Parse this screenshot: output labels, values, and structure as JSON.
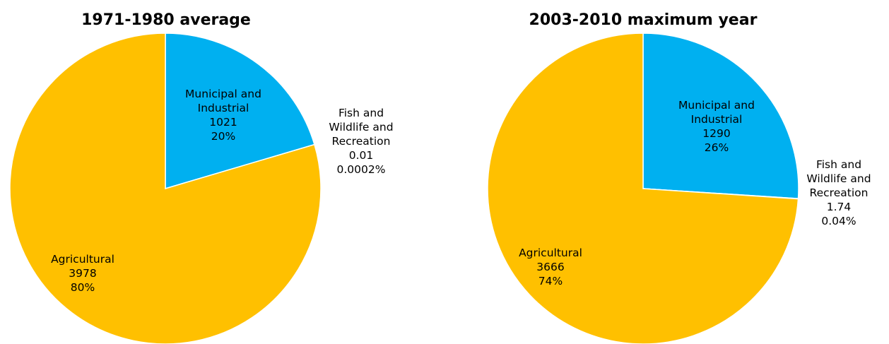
{
  "colors": {
    "municipal": "#00B0F0",
    "agricultural": "#FFC000",
    "fish": "#FFFFFF"
  },
  "chart_data": [
    {
      "type": "pie",
      "title": "1971-1980 average",
      "slices": [
        {
          "name": "Municipal and Industrial",
          "label_lines": [
            "Municipal and",
            "Industrial"
          ],
          "value": 1021,
          "value_text": "1021",
          "percent": "20%",
          "color": "#00B0F0"
        },
        {
          "name": "Fish and Wildlife and Recreation",
          "label_lines": [
            "Fish and",
            "Wildlife and",
            "Recreation"
          ],
          "value": 0.01,
          "value_text": "0.01",
          "percent": "0.0002%",
          "color": "#FFFFFF"
        },
        {
          "name": "Agricultural",
          "label_lines": [
            "Agricultural"
          ],
          "value": 3978,
          "value_text": "3978",
          "percent": "80%",
          "color": "#FFC000"
        }
      ]
    },
    {
      "type": "pie",
      "title": "2003-2010 maximum year",
      "slices": [
        {
          "name": "Municipal and Industrial",
          "label_lines": [
            "Municipal and",
            "Industrial"
          ],
          "value": 1290,
          "value_text": "1290",
          "percent": "26%",
          "color": "#00B0F0"
        },
        {
          "name": "Fish and Wildlife and Recreation",
          "label_lines": [
            "Fish and",
            "Wildlife and",
            "Recreation"
          ],
          "value": 1.74,
          "value_text": "1.74",
          "percent": "0.04%",
          "color": "#FFFFFF"
        },
        {
          "name": "Agricultural",
          "label_lines": [
            "Agricultural"
          ],
          "value": 3666,
          "value_text": "3666",
          "percent": "74%",
          "color": "#FFC000"
        }
      ]
    }
  ]
}
